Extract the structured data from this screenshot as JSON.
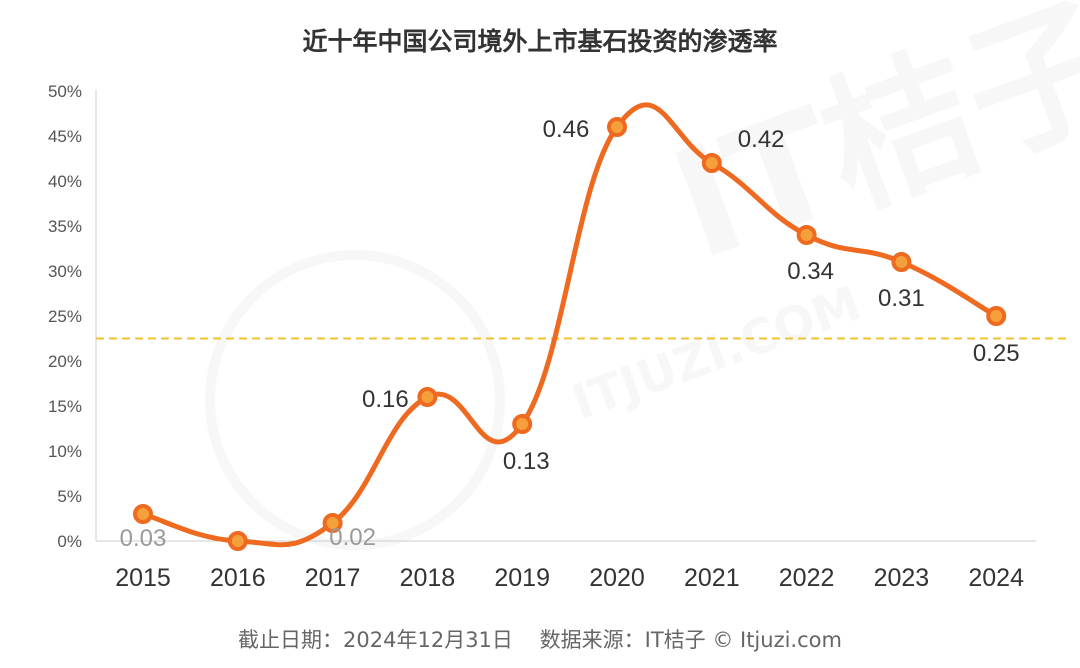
{
  "chart_data": {
    "type": "line",
    "title": "近十年中国公司境外上市基石投资的渗透率",
    "categories": [
      "2015",
      "2016",
      "2017",
      "2018",
      "2019",
      "2020",
      "2021",
      "2022",
      "2023",
      "2024"
    ],
    "series": [
      {
        "values": [
          0.03,
          0,
          0.02,
          0.16,
          0.13,
          0.46,
          0.42,
          0.34,
          0.31,
          0.25
        ],
        "data_labels": [
          "0.03",
          "",
          "0.02",
          "0.16",
          "0.13",
          "0.46",
          "0.42",
          "0.34",
          "0.31",
          "0.25"
        ]
      }
    ],
    "y_ticks": [
      "0%",
      "5%",
      "10%",
      "15%",
      "20%",
      "25%",
      "30%",
      "35%",
      "40%",
      "45%",
      "50%"
    ],
    "ylim": [
      0,
      0.5
    ],
    "reference_line": {
      "value": 0.225,
      "style": "dashed"
    },
    "grid": false,
    "xlabel": "",
    "ylabel": "",
    "colors": {
      "line": "#EE6A21",
      "marker_fill": "#F5A03A",
      "ref_line": "#F2C12E"
    }
  },
  "footer": {
    "date": "截止日期：2024年12月31日",
    "source": "数据来源：IT桔子 © Itjuzi.com"
  },
  "watermark": {
    "text": "IT桔子",
    "subtext": "ITJUZI.COM"
  }
}
